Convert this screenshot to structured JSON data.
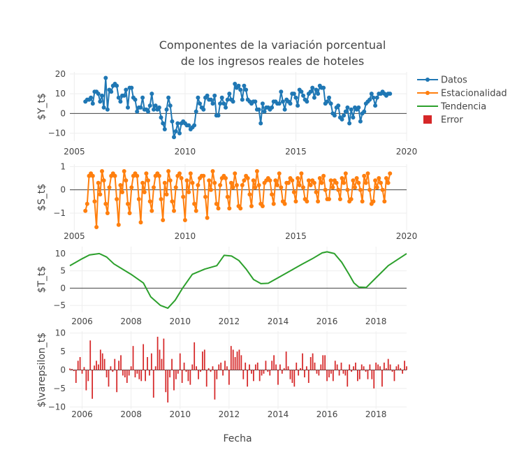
{
  "chart_title_line1": "Componentes de la variación porcentual",
  "chart_title_line2": "de los ingresos reales de hoteles",
  "xlabel": "Fecha",
  "legend": [
    {
      "label": "Datos",
      "color": "#1f77b4",
      "kind": "line-marker"
    },
    {
      "label": "Estacionalidad",
      "color": "#ff7f0e",
      "kind": "line-marker"
    },
    {
      "label": "Tendencia",
      "color": "#2ca02c",
      "kind": "line"
    },
    {
      "label": "Error",
      "color": "#d62728",
      "kind": "bar"
    }
  ],
  "chart_data": [
    {
      "type": "line",
      "name": "Datos",
      "ylabel": "$Y_t$",
      "color": "#1f77b4",
      "xlim": [
        2004.8,
        2020.0
      ],
      "ylim": [
        -14,
        21
      ],
      "yticks": [
        -10,
        0,
        10,
        20
      ],
      "xticks": [
        2005,
        2010,
        2015,
        2020
      ],
      "x_start": 2005.5,
      "x_step": 0.08333,
      "values": [
        6,
        7,
        7,
        8,
        5,
        11,
        11,
        10,
        6,
        9,
        3,
        18,
        2,
        12,
        11,
        14,
        15,
        14,
        8,
        6,
        9,
        9,
        12,
        3,
        13,
        13,
        8,
        7,
        1,
        3,
        3,
        8,
        2,
        2,
        1,
        4,
        10,
        2,
        4,
        2,
        3,
        -2,
        -5,
        -8,
        2,
        8,
        4,
        -4,
        -12,
        -9,
        -5,
        -10,
        -5,
        -4,
        -5,
        -6,
        -6,
        -8,
        -7,
        -6,
        1,
        8,
        5,
        3,
        2,
        8,
        9,
        7,
        7,
        5,
        9,
        -1,
        -1,
        5,
        8,
        5,
        3,
        7,
        10,
        7,
        6,
        15,
        13,
        14,
        12,
        7,
        14,
        12,
        7,
        6,
        5,
        6,
        6,
        2,
        2,
        -5,
        5,
        1,
        3,
        3,
        2,
        3,
        6,
        6,
        5,
        5,
        11,
        6,
        2,
        7,
        6,
        5,
        10,
        10,
        8,
        4,
        12,
        11,
        9,
        7,
        6,
        10,
        11,
        13,
        8,
        12,
        10,
        14,
        13,
        13,
        5,
        6,
        8,
        5,
        0,
        -1,
        3,
        4,
        -2,
        -3,
        -1,
        1,
        3,
        -5,
        2,
        -2,
        3,
        2,
        3,
        -4,
        0,
        1,
        5,
        6,
        7,
        10,
        8,
        4,
        8,
        10,
        10,
        11,
        10,
        9,
        10,
        10
      ],
      "zero_line": true
    },
    {
      "type": "line",
      "name": "Estacionalidad",
      "ylabel": "$S_t$",
      "color": "#ff7f0e",
      "xlim": [
        2004.8,
        2020.0
      ],
      "ylim": [
        -1.75,
        1.1
      ],
      "yticks": [
        -1,
        0,
        1
      ],
      "xticks": [
        2005,
        2010,
        2015,
        2020
      ],
      "x_start": 2005.5,
      "x_step": 0.08333,
      "values": [
        -0.9,
        -0.6,
        0.6,
        0.7,
        0.6,
        -0.5,
        -1.6,
        0.3,
        -0.2,
        0.8,
        0.4,
        -0.6,
        -1.0,
        0.1,
        0.6,
        0.7,
        0.6,
        -0.4,
        -1.5,
        0.2,
        -0.1,
        0.8,
        0.4,
        -0.6,
        -1.0,
        0.1,
        0.6,
        0.7,
        0.6,
        -0.4,
        -1.4,
        0.3,
        -0.1,
        0.7,
        0.4,
        -0.5,
        -0.9,
        0.1,
        0.6,
        0.7,
        0.6,
        -0.4,
        -1.3,
        0.3,
        -0.2,
        0.8,
        0.4,
        -0.5,
        -0.9,
        0.1,
        0.6,
        0.7,
        0.5,
        -0.3,
        -1.3,
        0.4,
        -0.1,
        0.7,
        0.3,
        -0.6,
        -0.9,
        0.2,
        0.5,
        0.6,
        0.6,
        -0.3,
        -1.2,
        0.4,
        0.0,
        0.8,
        0.3,
        -0.6,
        -0.8,
        0.2,
        0.5,
        0.6,
        0.5,
        -0.3,
        -0.8,
        0.3,
        0.1,
        0.7,
        0.2,
        -0.7,
        -0.8,
        0.2,
        0.4,
        0.6,
        0.5,
        -0.2,
        -0.7,
        0.4,
        0.1,
        0.8,
        0.2,
        -0.6,
        -0.7,
        0.3,
        0.4,
        0.5,
        0.4,
        -0.2,
        -0.6,
        0.4,
        0.2,
        0.7,
        0.1,
        -0.5,
        -0.6,
        0.3,
        0.3,
        0.5,
        0.4,
        -0.1,
        -0.5,
        0.5,
        0.2,
        0.7,
        0.1,
        -0.4,
        -0.5,
        0.4,
        0.2,
        0.4,
        0.3,
        -0.1,
        -0.5,
        0.5,
        0.3,
        0.6,
        0.0,
        -0.4,
        -0.4,
        0.4,
        0.1,
        0.4,
        0.3,
        0.0,
        -0.4,
        0.5,
        0.3,
        0.7,
        0.0,
        -0.5,
        -0.4,
        0.4,
        0.1,
        0.5,
        0.3,
        0.0,
        -0.5,
        0.6,
        0.3,
        0.7,
        0.0,
        -0.6,
        -0.5,
        0.4,
        0.1,
        0.5,
        0.3,
        0.0,
        -0.5,
        0.5,
        0.3,
        0.7
      ],
      "zero_line": true
    },
    {
      "type": "line",
      "name": "Tendencia",
      "ylabel": "$T_t$",
      "color": "#2ca02c",
      "xlim": [
        2005.5,
        2019.25
      ],
      "ylim": [
        -7,
        12
      ],
      "yticks": [
        -5,
        0,
        5,
        10
      ],
      "xticks": [
        2006,
        2008,
        2010,
        2012,
        2014,
        2016,
        2018
      ],
      "x": [
        2005.5,
        2006.0,
        2006.3,
        2006.7,
        2007.0,
        2007.3,
        2008.0,
        2008.5,
        2008.8,
        2009.2,
        2009.5,
        2009.8,
        2010.1,
        2010.5,
        2011.0,
        2011.5,
        2011.8,
        2012.1,
        2012.4,
        2012.7,
        2013.0,
        2013.3,
        2013.6,
        2014.0,
        2014.5,
        2015.0,
        2015.4,
        2015.8,
        2016.0,
        2016.3,
        2016.6,
        2016.9,
        2017.1,
        2017.3,
        2017.6,
        2018.0,
        2018.5,
        2019.25
      ],
      "values": [
        6.5,
        8.5,
        9.6,
        10.0,
        9.0,
        7.0,
        4.0,
        1.5,
        -2.5,
        -5.0,
        -5.8,
        -3.5,
        0.0,
        4.0,
        5.5,
        6.5,
        9.5,
        9.3,
        8.0,
        5.5,
        2.5,
        1.3,
        1.4,
        3.0,
        5.0,
        7.0,
        8.5,
        10.2,
        10.5,
        10.0,
        7.5,
        4.0,
        1.5,
        0.3,
        0.2,
        3.0,
        6.5,
        10.0
      ],
      "zero_line": true
    },
    {
      "type": "bar",
      "name": "Error",
      "ylabel": "$\\varepsilon_t$",
      "color": "#d62728",
      "xlim": [
        2005.5,
        2019.25
      ],
      "ylim": [
        -10.5,
        10.5
      ],
      "yticks": [
        -10,
        -5,
        0,
        5,
        10
      ],
      "xticks": [
        2006,
        2008,
        2010,
        2012,
        2014,
        2016,
        2018
      ],
      "x_start": 2005.5,
      "x_step": 0.08333,
      "values": [
        0.4,
        0.3,
        -0.3,
        -3.5,
        2.5,
        3.5,
        -1.0,
        0.8,
        -5.5,
        -3.0,
        8.0,
        -7.8,
        1.2,
        2.5,
        1.5,
        5.5,
        4.5,
        3.0,
        -2.0,
        -4.5,
        1.0,
        -0.5,
        3.0,
        -6.0,
        2.5,
        4.0,
        -1.5,
        -2.0,
        -3.5,
        -1.5,
        1.0,
        6.5,
        -2.0,
        -1.0,
        -2.5,
        -3.0,
        7.0,
        -3.0,
        3.5,
        -1.5,
        4.5,
        -7.5,
        1.0,
        9.0,
        5.5,
        3.0,
        8.5,
        -6.0,
        -8.8,
        -2.0,
        3.0,
        -5.5,
        -2.5,
        -1.0,
        4.5,
        -3.5,
        2.0,
        -0.5,
        -3.0,
        -4.0,
        1.5,
        7.5,
        1.0,
        -2.5,
        -0.5,
        5.0,
        5.5,
        -4.5,
        0.5,
        -0.5,
        1.0,
        -8.0,
        -2.5,
        1.5,
        2.0,
        -1.5,
        2.5,
        1.0,
        -4.0,
        6.5,
        5.5,
        3.5,
        5.0,
        5.5,
        4.0,
        -2.5,
        2.0,
        -4.5,
        1.5,
        -1.0,
        -3.0,
        1.5,
        2.0,
        -3.0,
        -1.5,
        -1.0,
        2.5,
        -0.5,
        -1.5,
        2.5,
        4.0,
        1.5,
        -4.0,
        1.5,
        -1.0,
        0.5,
        5.0,
        1.0,
        -2.5,
        -3.5,
        -4.5,
        2.0,
        -1.5,
        0.5,
        4.5,
        -2.0,
        1.0,
        -3.5,
        3.5,
        4.5,
        2.0,
        -1.0,
        -1.5,
        1.5,
        4.0,
        4.0,
        -3.0,
        -2.0,
        -1.0,
        -3.0,
        2.5,
        1.5,
        -1.5,
        2.0,
        -1.0,
        -1.5,
        -4.5,
        1.5,
        -0.5,
        1.0,
        2.0,
        -3.0,
        -2.5,
        1.5,
        1.0,
        -0.5,
        -2.5,
        1.5,
        -2.5,
        -5.0,
        2.0,
        1.5,
        1.0,
        -4.5,
        2.0,
        0.5,
        3.0,
        1.5,
        -0.5,
        -3.0,
        1.0,
        1.5,
        0.5,
        -1.0,
        2.5,
        1.0,
        3.5,
        2.0,
        2.5,
        -2.0,
        1.0,
        1.5,
        -1.5,
        -0.5,
        1.5,
        0.5,
        0.5,
        -1.0
      ],
      "zero_line": true
    }
  ]
}
